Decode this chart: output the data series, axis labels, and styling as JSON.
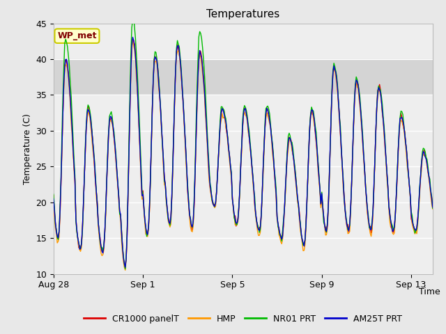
{
  "title": "Temperatures",
  "xlabel": "Time",
  "ylabel": "Temperature (C)",
  "ylim": [
    10,
    45
  ],
  "yticks": [
    10,
    15,
    20,
    25,
    30,
    35,
    40,
    45
  ],
  "x_labels": [
    "Aug 28",
    "Sep 1",
    "Sep 5",
    "Sep 9",
    "Sep 13"
  ],
  "x_label_days": [
    0,
    4,
    8,
    12,
    16
  ],
  "annotation_text": "WP_met",
  "annotation_bg": "#ffffcc",
  "annotation_fg": "#800000",
  "annotation_edge": "#cccc00",
  "colors": {
    "CR1000 panelT": "#dd0000",
    "HMP": "#ff9900",
    "NR01 PRT": "#00bb00",
    "AM25T PRT": "#0000cc"
  },
  "fig_bg": "#e8e8e8",
  "plot_bg": "#eeeeee",
  "grid_color": "#ffffff",
  "hspan_lo": 35,
  "hspan_hi": 40,
  "hspan_color": "#d4d4d4",
  "figsize": [
    6.4,
    4.8
  ],
  "dpi": 100,
  "lw": 1.0
}
